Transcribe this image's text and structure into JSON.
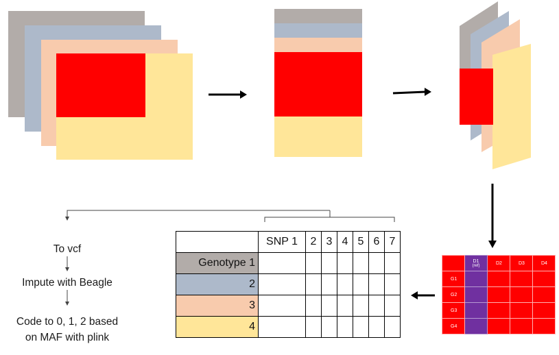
{
  "colors": {
    "gray": "#b2aca9",
    "blue": "#adb9ca",
    "peach": "#f8cbad",
    "yellow": "#ffe699",
    "red": "#ff0000",
    "purple": "#7030a0"
  },
  "pipeline_steps": [
    "To vcf",
    "Impute with Beagle",
    "Code to 0, 1, 2 based",
    "on MAF with plink"
  ],
  "genotype_table": {
    "header": [
      "SNP 1",
      "2",
      "3",
      "4",
      "5",
      "6",
      "7"
    ],
    "rows": [
      "Genotype 1",
      "2",
      "3",
      "4"
    ]
  },
  "mini_matrix": {
    "columns": [
      "D1",
      "D2",
      "D3",
      "D4"
    ],
    "ref_note": "(ref)",
    "rows": [
      "G1",
      "G2",
      "G3",
      "G4"
    ]
  }
}
